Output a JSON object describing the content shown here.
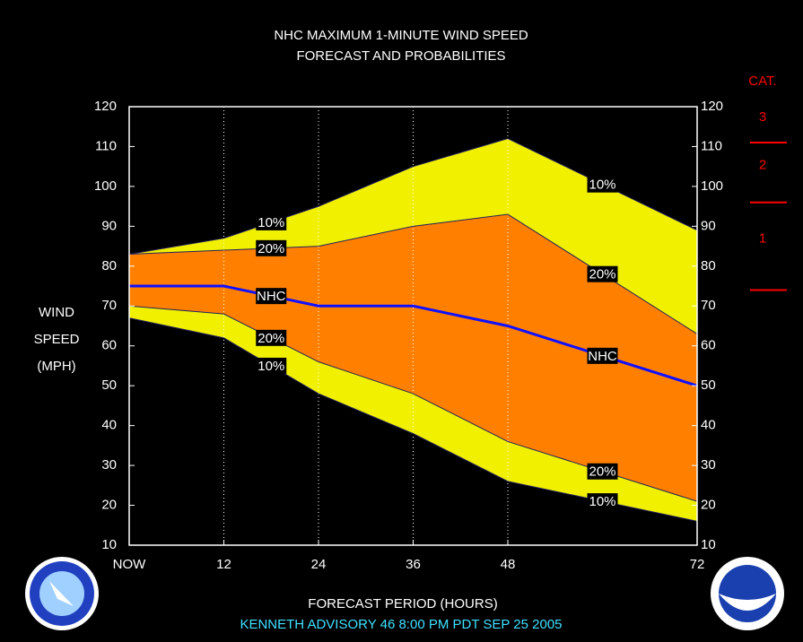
{
  "chart_data": {
    "type": "band_line",
    "title": [
      "NHC MAXIMUM 1-MINUTE WIND SPEED",
      "FORECAST AND PROBABILITIES"
    ],
    "x_label": "FORECAST PERIOD (HOURS)",
    "y_label": [
      "WIND",
      "SPEED",
      "(MPH)"
    ],
    "footer": "KENNETH   ADVISORY  46  8:00  PM  PDT  SEP  25  2005",
    "x": [
      0,
      12,
      24,
      36,
      48,
      72
    ],
    "xlim": [
      0,
      72
    ],
    "xticks": [
      {
        "value": 0,
        "label": "NOW"
      },
      12,
      24,
      36,
      48,
      72
    ],
    "ylim": [
      10,
      120
    ],
    "yticks": [
      10,
      20,
      30,
      40,
      50,
      60,
      70,
      80,
      90,
      100,
      110,
      120
    ],
    "y2lim": [
      10,
      120
    ],
    "y2ticks": [
      10,
      20,
      30,
      40,
      50,
      60,
      70,
      80,
      90,
      100,
      110,
      120
    ],
    "xgrid": true,
    "series": [
      {
        "name": "10%",
        "color": "#202060",
        "values": [
          83,
          87,
          95,
          105,
          112,
          89
        ]
      },
      {
        "name": "20%",
        "color": "#202060",
        "values": [
          83,
          84,
          85,
          90,
          93,
          63
        ]
      },
      {
        "name": "NHC",
        "color": "#1010ff",
        "values": [
          75,
          75,
          70,
          70,
          65,
          50
        ]
      },
      {
        "name": "20%",
        "color": "#202060",
        "values": [
          70,
          68,
          56,
          48,
          36,
          21
        ]
      },
      {
        "name": "10%",
        "color": "#202060",
        "values": [
          67,
          62,
          48,
          38,
          26,
          16
        ]
      }
    ],
    "bands": [
      {
        "color": "#f0f000",
        "series": [
          0,
          4
        ]
      },
      {
        "color": "#ff8000",
        "series": [
          1,
          3
        ]
      }
    ],
    "saffir_simpson": {
      "title": "CAT.",
      "color": "#ff0000",
      "categories": [
        "3",
        "2",
        "1"
      ],
      "thresholds": [
        111,
        96,
        74
      ]
    }
  }
}
